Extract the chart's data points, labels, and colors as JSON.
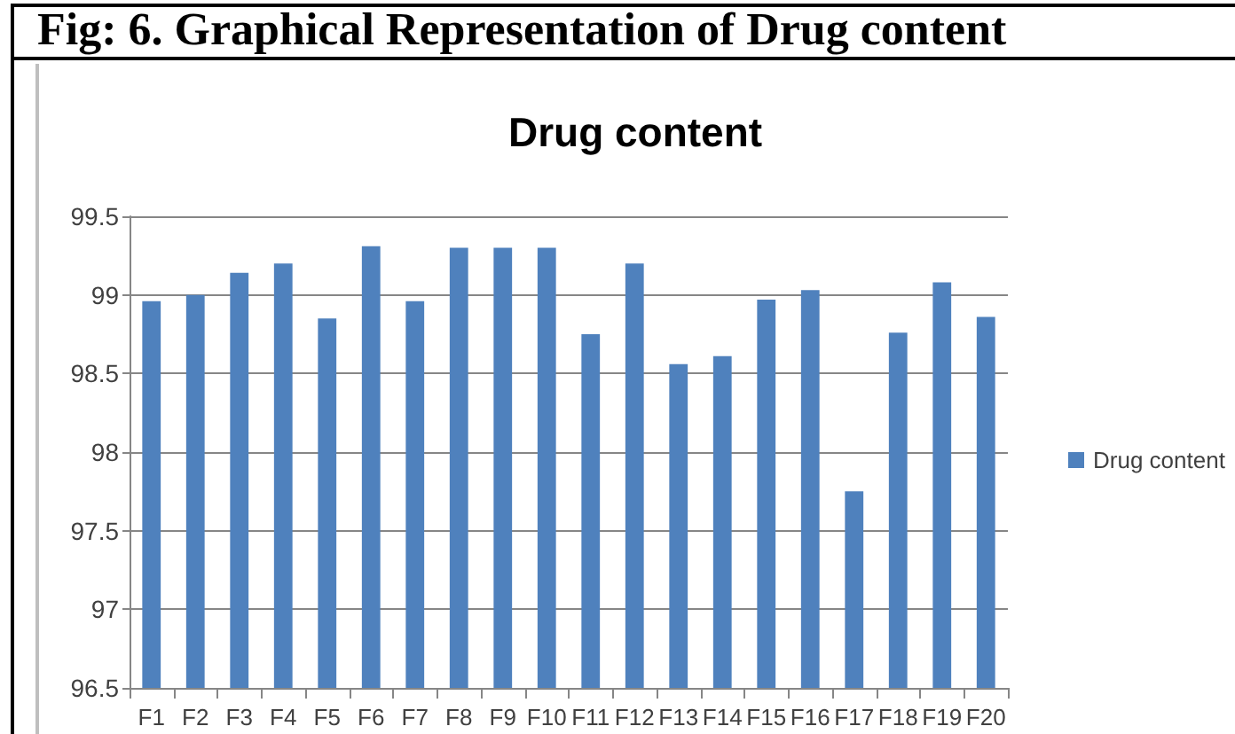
{
  "chart_data": {
    "type": "bar",
    "title": "Drug content",
    "annotations": [
      "Fig: 6. Graphical Representation of Drug content"
    ],
    "categories": [
      "F1",
      "F2",
      "F3",
      "F4",
      "F5",
      "F6",
      "F7",
      "F8",
      "F9",
      "F10",
      "F11",
      "F12",
      "F13",
      "F14",
      "F15",
      "F16",
      "F17",
      "F18",
      "F19",
      "F20"
    ],
    "series": [
      {
        "name": "Drug content",
        "color": "#4f81bd",
        "values": [
          98.96,
          99.0,
          99.14,
          99.2,
          98.85,
          99.31,
          98.96,
          99.3,
          99.3,
          99.3,
          98.75,
          99.2,
          98.56,
          98.61,
          98.97,
          99.03,
          97.75,
          98.76,
          99.08,
          98.86
        ]
      }
    ],
    "ylim": [
      96.5,
      99.5
    ],
    "yticks": [
      96.5,
      97,
      97.5,
      98,
      98.5,
      99,
      99.5
    ],
    "grid": "y",
    "legend": "right"
  }
}
